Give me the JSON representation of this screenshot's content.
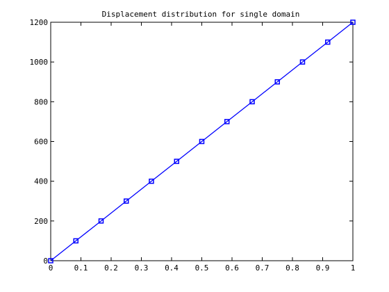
{
  "chart_data": {
    "type": "line",
    "title": "Displacement distribution for single domain",
    "xlabel": "",
    "ylabel": "",
    "xlim": [
      0,
      1
    ],
    "ylim": [
      0,
      1200
    ],
    "x_ticks": [
      0,
      0.1,
      0.2,
      0.3,
      0.4,
      0.5,
      0.6,
      0.7,
      0.8,
      0.9,
      1
    ],
    "x_tick_labels": [
      "0",
      "0.1",
      "0.2",
      "0.3",
      "0.4",
      "0.5",
      "0.6",
      "0.7",
      "0.8",
      "0.9",
      "1"
    ],
    "y_ticks": [
      0,
      200,
      400,
      600,
      800,
      1000,
      1200
    ],
    "y_tick_labels": [
      "0",
      "200",
      "400",
      "600",
      "800",
      "1000",
      "1200"
    ],
    "grid": false,
    "legend": "none",
    "series": [
      {
        "color": "#0000ff",
        "marker": "square",
        "x": [
          0,
          0.0833,
          0.1667,
          0.25,
          0.3333,
          0.4167,
          0.5,
          0.5833,
          0.6667,
          0.75,
          0.8333,
          0.9167,
          1
        ],
        "y": [
          0,
          100,
          200,
          300,
          400,
          500,
          600,
          700,
          800,
          900,
          1000,
          1100,
          1200
        ]
      }
    ]
  }
}
